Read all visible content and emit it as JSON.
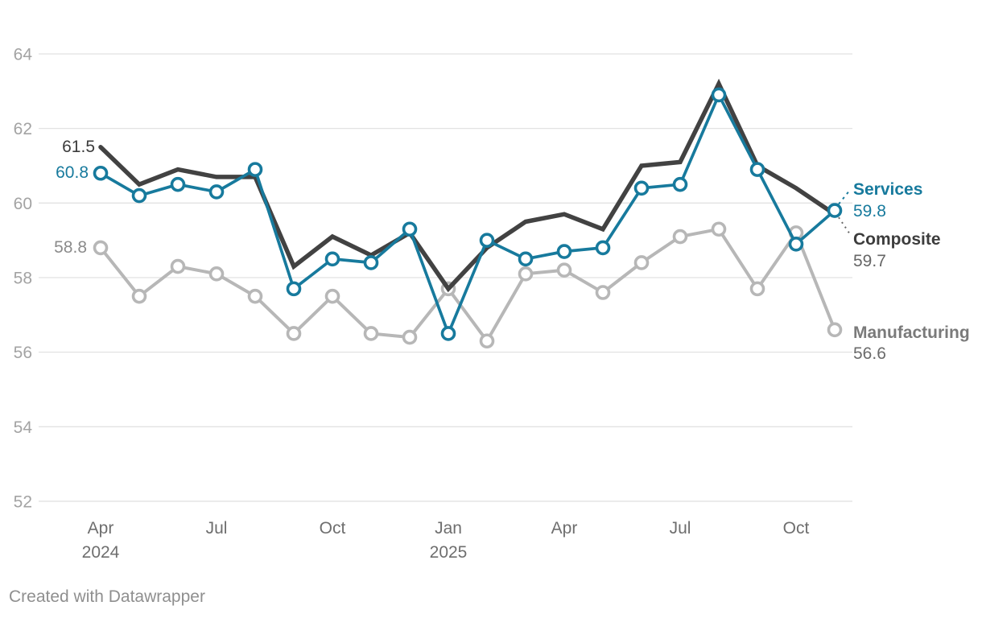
{
  "chart_data": {
    "type": "line",
    "title": "",
    "xlabel": "",
    "ylabel": "",
    "grid": true,
    "legend_position": "right-end-labels",
    "categories": [
      "Apr 2024",
      "May 2024",
      "Jun 2024",
      "Jul 2024",
      "Aug 2024",
      "Sep 2024",
      "Oct 2024",
      "Nov 2024",
      "Dec 2024",
      "Jan 2025",
      "Feb 2025",
      "Mar 2025",
      "Apr 2025",
      "May 2025",
      "Jun 2025",
      "Jul 2025",
      "Aug 2025",
      "Sep 2025",
      "Oct 2025",
      "Nov 2025"
    ],
    "y_ticks": [
      64,
      62,
      60,
      58,
      56,
      54,
      52
    ],
    "ylim": [
      51.5,
      64.5
    ],
    "x_ticks": [
      {
        "index": 0,
        "label": "Apr",
        "year": "2024"
      },
      {
        "index": 3,
        "label": "Jul",
        "year": ""
      },
      {
        "index": 6,
        "label": "Oct",
        "year": ""
      },
      {
        "index": 9,
        "label": "Jan",
        "year": "2025"
      },
      {
        "index": 12,
        "label": "Apr",
        "year": ""
      },
      {
        "index": 15,
        "label": "Jul",
        "year": ""
      },
      {
        "index": 18,
        "label": "Oct",
        "year": ""
      }
    ],
    "series": [
      {
        "name": "Manufacturing",
        "color": "#b7b7b7",
        "line_width": 4,
        "markers": true,
        "values": [
          58.8,
          57.5,
          58.3,
          58.1,
          57.5,
          56.5,
          57.5,
          56.5,
          56.4,
          57.7,
          56.3,
          58.1,
          58.2,
          57.6,
          58.4,
          59.1,
          59.3,
          57.7,
          59.2,
          56.6
        ]
      },
      {
        "name": "Composite",
        "color": "#424242",
        "line_width": 5.5,
        "markers": false,
        "values": [
          61.5,
          60.5,
          60.9,
          60.7,
          60.7,
          58.3,
          59.1,
          58.6,
          59.2,
          57.7,
          58.8,
          59.5,
          59.7,
          59.3,
          61.0,
          61.1,
          63.2,
          61.0,
          60.4,
          59.7
        ]
      },
      {
        "name": "Services",
        "color": "#177a9d",
        "line_width": 3.7,
        "markers": true,
        "values": [
          60.8,
          60.2,
          60.5,
          60.3,
          60.9,
          57.7,
          58.5,
          58.4,
          59.3,
          56.5,
          59.0,
          58.5,
          58.7,
          58.8,
          60.4,
          60.5,
          62.9,
          60.9,
          58.9,
          59.8
        ]
      }
    ],
    "labels": {
      "composite_start": "61.5",
      "services_start": "60.8",
      "manufacturing_start": "58.8",
      "services_name": "Services",
      "services_end": "59.8",
      "composite_name": "Composite",
      "composite_end": "59.7",
      "manufacturing_name": "Manufacturing",
      "manufacturing_end": "56.6"
    },
    "colors": {
      "services": "#177a9d",
      "services_value": "#177a9d",
      "composite_line": "#424242",
      "composite_text": "#3c3c3c",
      "composite_value": "#666666",
      "manufacturing_line": "#b7b7b7",
      "manufacturing_text": "#7a7a7a",
      "manufacturing_value": "#6b6b6b",
      "composite_start": "#3c3c3c",
      "services_start": "#177a9d",
      "manufacturing_start": "#8b8b8b",
      "grid": "#e2e2e2",
      "y_tick_text": "#a3a3a3",
      "x_tick_text": "#6e6e6e",
      "footer_text": "#8f8f8f"
    }
  },
  "footer": {
    "credit": "Created with Datawrapper"
  }
}
